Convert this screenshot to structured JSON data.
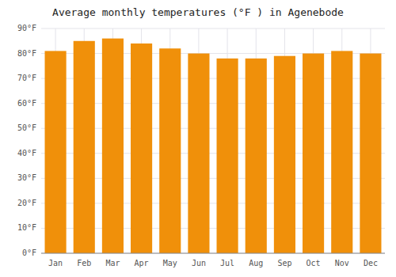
{
  "chart_data": {
    "type": "bar",
    "title": "Average monthly temperatures (°F ) in Agenebode",
    "categories": [
      "Jan",
      "Feb",
      "Mar",
      "Apr",
      "May",
      "Jun",
      "Jul",
      "Aug",
      "Sep",
      "Oct",
      "Nov",
      "Dec"
    ],
    "values": [
      81,
      85,
      86,
      84,
      82,
      80,
      78,
      78,
      79,
      80,
      81,
      80
    ],
    "color": "#F0900A",
    "ylim": [
      0,
      90
    ],
    "yticks": [
      {
        "value": 0,
        "label": "0°F"
      },
      {
        "value": 10,
        "label": "10°F"
      },
      {
        "value": 20,
        "label": "20°F"
      },
      {
        "value": 30,
        "label": "30°F"
      },
      {
        "value": 40,
        "label": "40°F"
      },
      {
        "value": 50,
        "label": "50°F"
      },
      {
        "value": 60,
        "label": "60°F"
      },
      {
        "value": 70,
        "label": "70°F"
      },
      {
        "value": 80,
        "label": "80°F"
      },
      {
        "value": 90,
        "label": "90°F"
      }
    ],
    "grid": true
  }
}
